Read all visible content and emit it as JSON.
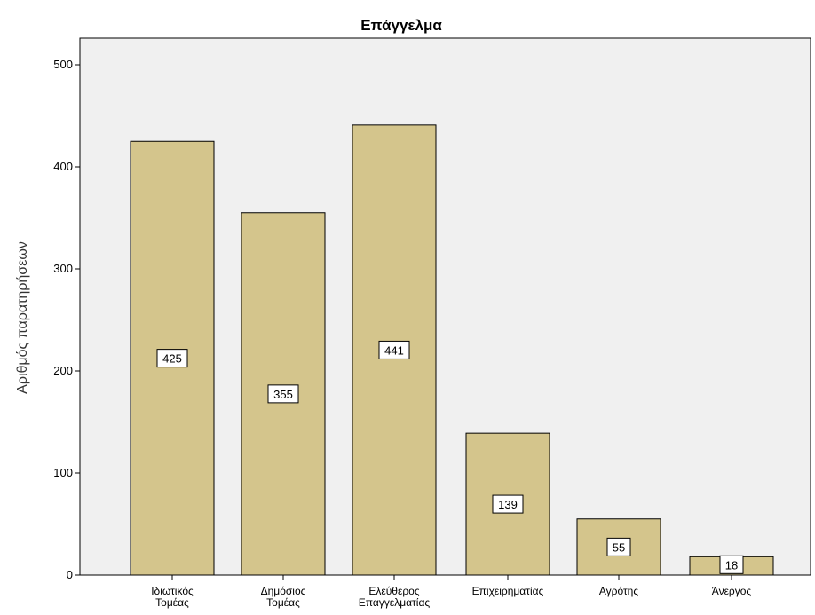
{
  "chart_data": {
    "type": "bar",
    "title": "Επάγγελμα",
    "xlabel": "",
    "ylabel": "Αριθμός παρατηρήσεων",
    "categories": [
      [
        "Ιδιωτικός",
        "Τομέας"
      ],
      [
        "Δημόσιος",
        "Τομέας"
      ],
      [
        "Ελεύθερος",
        "Επαγγελματίας"
      ],
      [
        "Επιχειρηματίας"
      ],
      [
        "Αγρότης"
      ],
      [
        "Άνεργος"
      ]
    ],
    "values": [
      425,
      355,
      441,
      139,
      55,
      18
    ],
    "data_labels": [
      "425",
      "355",
      "441",
      "139",
      "55",
      "18"
    ],
    "ylim": [
      0,
      500
    ],
    "yticks": [
      0,
      100,
      200,
      300,
      400,
      500
    ],
    "ytick_labels": [
      "0",
      "100",
      "200",
      "300",
      "400",
      "500"
    ],
    "grid": false,
    "colors": {
      "bar_fill": "#d4c58c",
      "bar_stroke": "#000000",
      "plot_background": "#f0f0f0",
      "label_box": "#ffffff"
    }
  }
}
